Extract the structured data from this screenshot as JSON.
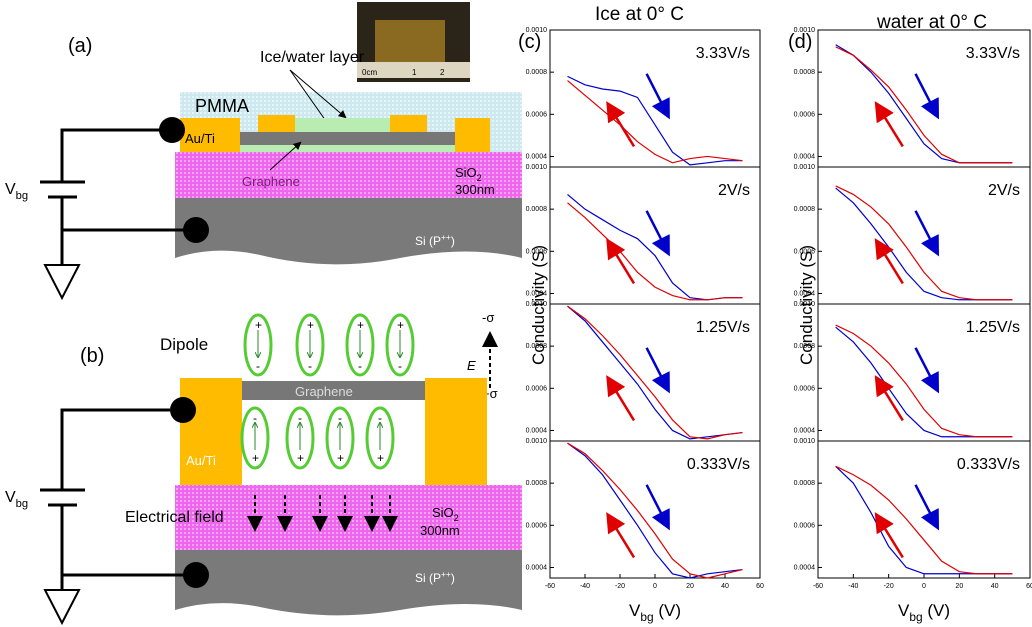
{
  "diagram_a": {
    "label": "(a)",
    "layer": "Ice/water layer",
    "pmma": "PMMA",
    "electrode": "Au/Ti",
    "graphene": "Graphene",
    "oxide": [
      "SiO",
      "2"
    ],
    "thickness": "300nm",
    "substrate": [
      "Si (P",
      "++",
      ")"
    ],
    "gate": [
      "V",
      "bg"
    ],
    "ruler": [
      "0cm",
      "1",
      "2"
    ]
  },
  "diagram_b": {
    "label": "(b)",
    "dipole": "Dipole",
    "neg": "-σ",
    "pos": "+σ",
    "field_symbol": "E",
    "graphene": "Graphene",
    "electrode": "Au/Ti",
    "field": "Electrical field",
    "oxide": [
      "SiO",
      "2"
    ],
    "thickness": "300nm",
    "substrate": [
      "Si (P",
      "++",
      ")"
    ],
    "gate": [
      "V",
      "bg"
    ],
    "plus": "+",
    "minus": "-"
  },
  "panel_c": {
    "label": "(c)",
    "title": "Ice at 0° C",
    "y_label": "Conductivity (S)",
    "x_label": [
      "V",
      "bg",
      " (V)"
    ]
  },
  "panel_d": {
    "label": "(d)",
    "title": "water at 0° C",
    "y_label": "Conductivity (S)",
    "x_label": [
      "V",
      "bg",
      " (V)"
    ]
  },
  "chart_data": [
    {
      "type": "line",
      "annotation": "3.33V/s",
      "xlim": [
        -60,
        60
      ],
      "ylim": [
        0.00035,
        0.001
      ],
      "yticks": [
        0.0004,
        0.0006,
        0.0008,
        {
          "value": 0.001,
          "label": "0.0010"
        }
      ],
      "x": [
        -50,
        -40,
        -30,
        -20,
        -10,
        0,
        10,
        20,
        30,
        40,
        50
      ],
      "series": [
        {
          "color": "#0000cc",
          "values": [
            0.00078,
            0.00074,
            0.00072,
            0.00071,
            0.00068,
            0.00055,
            0.00042,
            0.00036,
            0.00037,
            0.00038,
            0.00038
          ]
        },
        {
          "color": "#e00000",
          "values": [
            0.00076,
            0.00069,
            0.00062,
            0.00055,
            0.00047,
            0.00041,
            0.00037,
            0.00039,
            0.0004,
            0.00039,
            0.00038
          ]
        }
      ]
    },
    {
      "type": "line",
      "annotation": "2V/s",
      "xlim": [
        -60,
        60
      ],
      "ylim": [
        0.00035,
        0.001
      ],
      "yticks": [
        0.0004,
        0.0006,
        0.0008,
        {
          "value": 0.001,
          "label": "0.0010"
        }
      ],
      "x": [
        -50,
        -40,
        -30,
        -20,
        -10,
        0,
        10,
        20,
        30,
        40,
        50
      ],
      "series": [
        {
          "color": "#0000cc",
          "values": [
            0.00087,
            0.0008,
            0.00075,
            0.0007,
            0.00066,
            0.00058,
            0.00045,
            0.00038,
            0.00037,
            0.00038,
            0.00038
          ]
        },
        {
          "color": "#e00000",
          "values": [
            0.00083,
            0.00076,
            0.00068,
            0.0006,
            0.0005,
            0.00043,
            0.00039,
            0.00037,
            0.00037,
            0.00038,
            0.00038
          ]
        }
      ]
    },
    {
      "type": "line",
      "annotation": "1.25V/s",
      "xlim": [
        -60,
        60
      ],
      "ylim": [
        0.00035,
        0.001
      ],
      "yticks": [
        0.0004,
        0.0006,
        0.0008,
        {
          "value": 0.001,
          "label": "0.0010"
        }
      ],
      "x": [
        -50,
        -40,
        -30,
        -20,
        -10,
        0,
        10,
        20,
        30,
        40,
        50
      ],
      "series": [
        {
          "color": "#0000cc",
          "values": [
            0.00099,
            0.00092,
            0.00082,
            0.00072,
            0.00062,
            0.0005,
            0.0004,
            0.00036,
            0.00037,
            0.00038,
            0.00039
          ]
        },
        {
          "color": "#e00000",
          "values": [
            0.00099,
            0.00093,
            0.00085,
            0.00076,
            0.00066,
            0.00056,
            0.00045,
            0.00037,
            0.00036,
            0.00038,
            0.00039
          ]
        }
      ]
    },
    {
      "type": "line",
      "annotation": "0.333V/s",
      "xlim": [
        -60,
        60
      ],
      "ylim": [
        0.00035,
        0.001
      ],
      "yticks": [
        0.0004,
        0.0006,
        0.0008,
        {
          "value": 0.001,
          "label": "0.0010"
        }
      ],
      "xticks": [
        -60,
        -40,
        -20,
        0,
        20,
        40,
        60
      ],
      "x": [
        -50,
        -40,
        -30,
        -20,
        -10,
        0,
        10,
        20,
        30,
        40,
        50
      ],
      "series": [
        {
          "color": "#0000cc",
          "values": [
            0.00099,
            0.00093,
            0.00084,
            0.00072,
            0.0006,
            0.00047,
            0.00037,
            0.00035,
            0.00037,
            0.00038,
            0.00039
          ]
        },
        {
          "color": "#e00000",
          "values": [
            0.00099,
            0.00094,
            0.00086,
            0.00077,
            0.00067,
            0.00056,
            0.00044,
            0.00037,
            0.00035,
            0.00037,
            0.00039
          ]
        }
      ]
    },
    {
      "type": "line",
      "annotation": "3.33V/s",
      "xlim": [
        -60,
        60
      ],
      "ylim": [
        0.00035,
        0.001
      ],
      "yticks": [
        0.0004,
        0.0006,
        0.0008,
        {
          "value": 0.001,
          "label": "0.0010"
        }
      ],
      "x": [
        -50,
        -40,
        -30,
        -20,
        -10,
        0,
        10,
        20,
        30,
        40,
        50
      ],
      "series": [
        {
          "color": "#0000cc",
          "values": [
            0.00093,
            0.00088,
            0.0008,
            0.0007,
            0.00058,
            0.00046,
            0.00039,
            0.00037,
            0.00037,
            0.00037,
            0.00037
          ]
        },
        {
          "color": "#e00000",
          "values": [
            0.00092,
            0.00088,
            0.00081,
            0.00073,
            0.00062,
            0.0005,
            0.00041,
            0.00037,
            0.00037,
            0.00037,
            0.00037
          ]
        }
      ]
    },
    {
      "type": "line",
      "annotation": "2V/s",
      "xlim": [
        -60,
        60
      ],
      "ylim": [
        0.00035,
        0.001
      ],
      "yticks": [
        0.0004,
        0.0006,
        0.0008,
        {
          "value": 0.001,
          "label": "0.0010"
        }
      ],
      "x": [
        -50,
        -40,
        -30,
        -20,
        -10,
        0,
        10,
        20,
        30,
        40,
        50
      ],
      "series": [
        {
          "color": "#0000cc",
          "values": [
            0.0009,
            0.00083,
            0.00073,
            0.00062,
            0.0005,
            0.00041,
            0.00038,
            0.00037,
            0.00037,
            0.00037,
            0.00037
          ]
        },
        {
          "color": "#e00000",
          "values": [
            0.00091,
            0.00087,
            0.00081,
            0.00073,
            0.00062,
            0.0005,
            0.00041,
            0.00038,
            0.00037,
            0.00037,
            0.00037
          ]
        }
      ]
    },
    {
      "type": "line",
      "annotation": "1.25V/s",
      "xlim": [
        -60,
        60
      ],
      "ylim": [
        0.00035,
        0.001
      ],
      "yticks": [
        0.0004,
        0.0006,
        0.0008,
        {
          "value": 0.001,
          "label": "0.0010"
        }
      ],
      "x": [
        -50,
        -40,
        -30,
        -20,
        -10,
        0,
        10,
        20,
        30,
        40,
        50
      ],
      "series": [
        {
          "color": "#0000cc",
          "values": [
            0.00089,
            0.00082,
            0.00072,
            0.0006,
            0.00048,
            0.0004,
            0.00037,
            0.00037,
            0.00037,
            0.00037,
            0.00037
          ]
        },
        {
          "color": "#e00000",
          "values": [
            0.0009,
            0.00086,
            0.0008,
            0.00072,
            0.00062,
            0.0005,
            0.00041,
            0.00038,
            0.00037,
            0.00037,
            0.00037
          ]
        }
      ]
    },
    {
      "type": "line",
      "annotation": "0.333V/s",
      "xlim": [
        -60,
        60
      ],
      "ylim": [
        0.00035,
        0.001
      ],
      "yticks": [
        0.0004,
        0.0006,
        0.0008,
        {
          "value": 0.001,
          "label": "0.0010"
        }
      ],
      "xticks": [
        -60,
        -40,
        -20,
        0,
        20,
        40,
        60
      ],
      "x": [
        -50,
        -40,
        -30,
        -20,
        -10,
        0,
        10,
        20,
        30,
        40,
        50
      ],
      "series": [
        {
          "color": "#0000cc",
          "values": [
            0.00088,
            0.0008,
            0.00066,
            0.0005,
            0.0004,
            0.00037,
            0.00037,
            0.00037,
            0.00037,
            0.00037,
            0.00037
          ]
        },
        {
          "color": "#e00000",
          "values": [
            0.00088,
            0.00084,
            0.00079,
            0.00072,
            0.00063,
            0.00053,
            0.00043,
            0.00038,
            0.00037,
            0.00037,
            0.00037
          ]
        }
      ]
    }
  ]
}
